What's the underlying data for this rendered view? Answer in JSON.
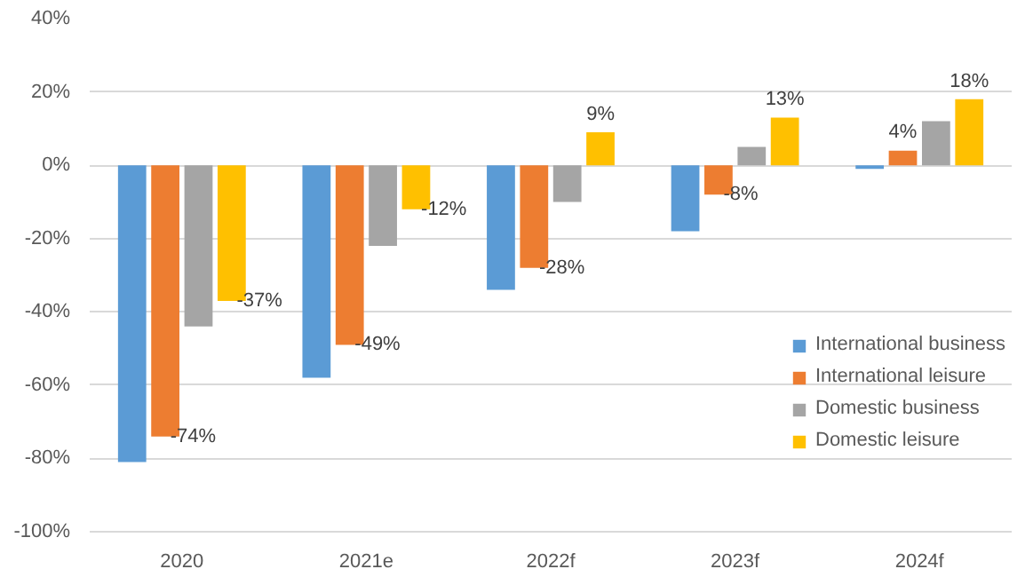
{
  "chart_data": {
    "type": "bar",
    "categories": [
      "2020",
      "2021e",
      "2022f",
      "2023f",
      "2024f"
    ],
    "series": [
      {
        "name": "International business",
        "color": "#5b9bd5",
        "values": [
          -81,
          -58,
          -34,
          -18,
          -1
        ]
      },
      {
        "name": "International leisure",
        "color": "#ed7d31",
        "values": [
          -74,
          -49,
          -28,
          -8,
          4
        ],
        "value_labels": [
          "-74%",
          "-49%",
          "-28%",
          "-8%",
          "4%"
        ]
      },
      {
        "name": "Domestic business",
        "color": "#a5a5a5",
        "values": [
          -44,
          -22,
          -10,
          5,
          12
        ]
      },
      {
        "name": "Domestic leisure",
        "color": "#ffc000",
        "values": [
          -37,
          -12,
          9,
          13,
          18
        ],
        "value_labels": [
          "-37%",
          "-12%",
          "9%",
          "13%",
          "18%"
        ]
      }
    ],
    "ylim": [
      -100,
      40
    ],
    "yticks": [
      {
        "value": -100,
        "label": "-100%"
      },
      {
        "value": -80,
        "label": "-80%"
      },
      {
        "value": -60,
        "label": "-60%"
      },
      {
        "value": -40,
        "label": "-40%"
      },
      {
        "value": -20,
        "label": "-20%"
      },
      {
        "value": 0,
        "label": "0%"
      },
      {
        "value": 20,
        "label": "20%"
      },
      {
        "value": 40,
        "label": "40%"
      }
    ],
    "grid": "y",
    "legend": "bottom right"
  }
}
